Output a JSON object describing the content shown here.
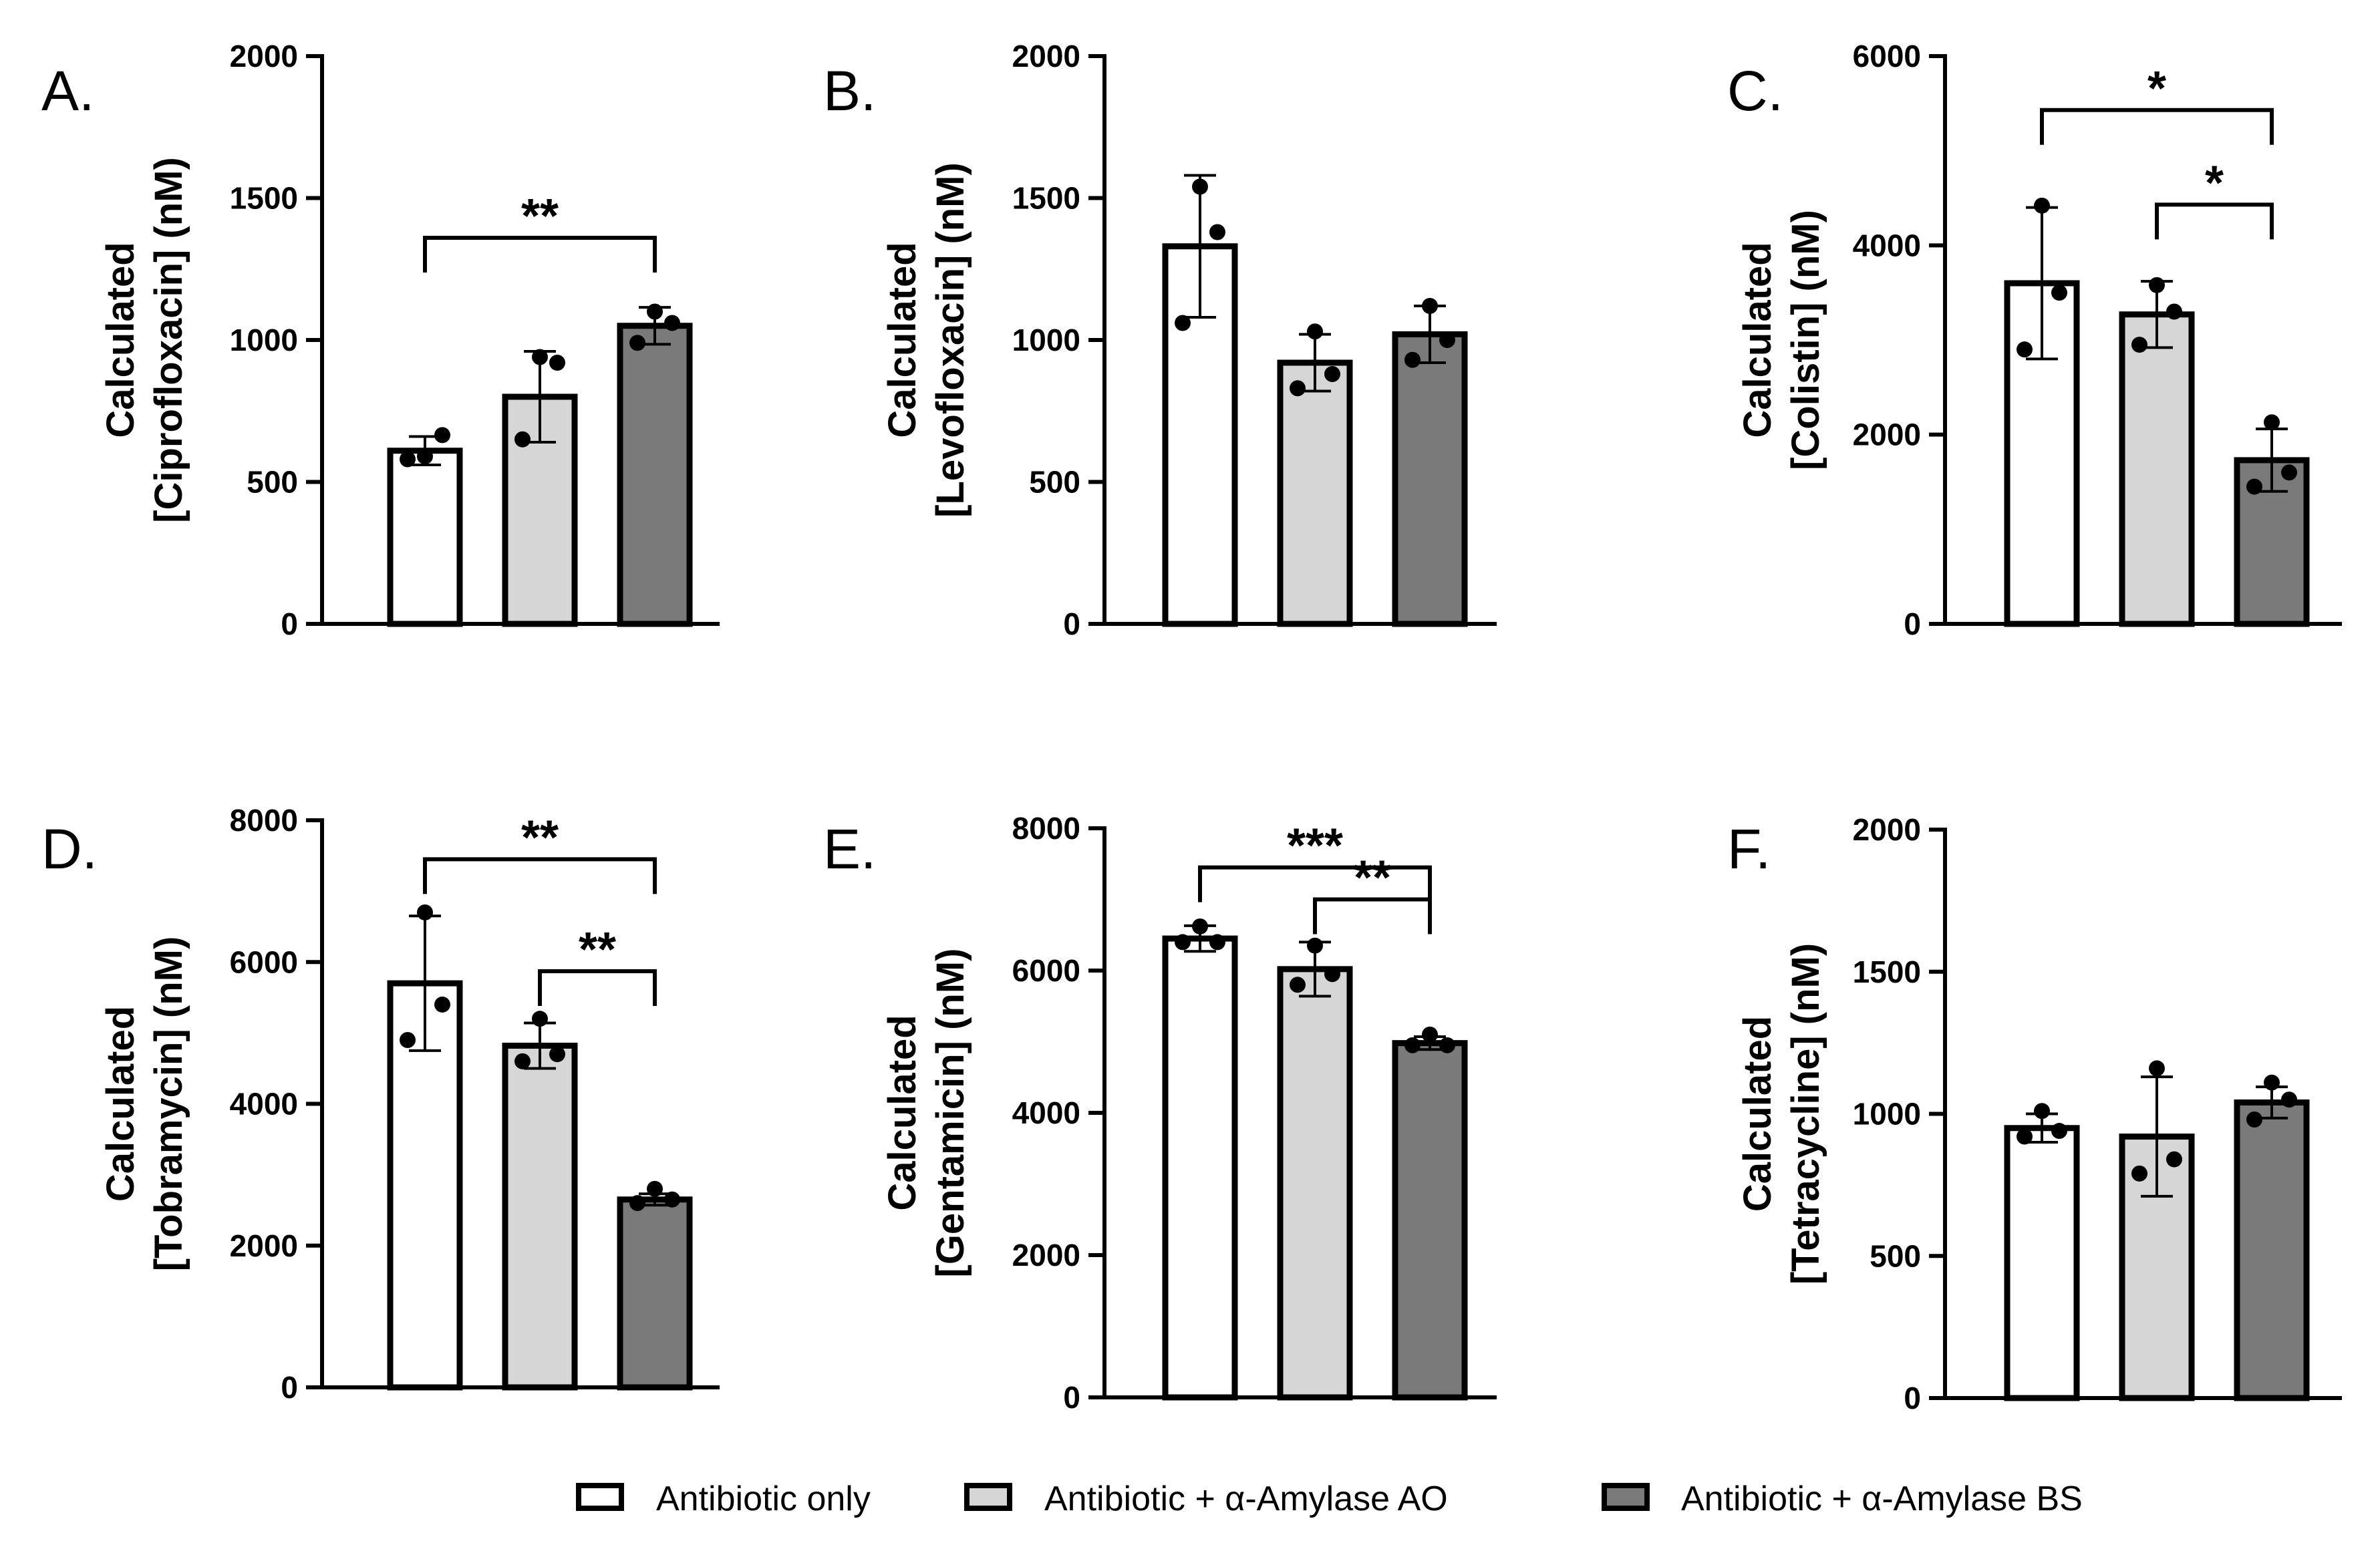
{
  "colors": {
    "antibiotic_only": "#ffffff",
    "amylase_ao": "#d6d6d6",
    "amylase_bs": "#7a7a7a",
    "stroke": "#000000"
  },
  "legend": [
    {
      "label": "Antibiotic only",
      "color_key": "antibiotic_only"
    },
    {
      "label": "Antibiotic + α-Amylase AO",
      "color_key": "amylase_ao"
    },
    {
      "label": "Antibiotic + α-Amylase BS",
      "color_key": "amylase_bs"
    }
  ],
  "chart_data": [
    {
      "type": "bar",
      "panel": "A.",
      "title": "",
      "ylabel_lines": [
        "Calculated",
        "[Ciprofloxacin] (nM)"
      ],
      "ylim": [
        0,
        2000
      ],
      "yticks": [
        0,
        500,
        1000,
        1500,
        2000
      ],
      "categories": [
        "Antibiotic only",
        "Antibiotic + α-Amylase AO",
        "Antibiotic + α-Amylase BS"
      ],
      "values": [
        610,
        800,
        1050
      ],
      "errors": [
        50,
        160,
        65
      ],
      "points": [
        [
          580,
          590,
          665
        ],
        [
          650,
          940,
          920
        ],
        [
          990,
          1100,
          1060
        ]
      ],
      "significance": [
        {
          "from": 0,
          "to": 2,
          "label": "**",
          "y": 1360
        }
      ]
    },
    {
      "type": "bar",
      "panel": "B.",
      "title": "",
      "ylabel_lines": [
        "Calculated",
        "[Levofloxacin] (nM)"
      ],
      "ylim": [
        0,
        2000
      ],
      "yticks": [
        0,
        500,
        1000,
        1500,
        2000
      ],
      "categories": [
        "Antibiotic only",
        "Antibiotic + α-Amylase AO",
        "Antibiotic + α-Amylase BS"
      ],
      "values": [
        1330,
        920,
        1020
      ],
      "errors": [
        250,
        100,
        100
      ],
      "points": [
        [
          1060,
          1540,
          1380
        ],
        [
          830,
          1030,
          880
        ],
        [
          930,
          1120,
          1000
        ]
      ],
      "significance": []
    },
    {
      "type": "bar",
      "panel": "C.",
      "title": "",
      "ylabel_lines": [
        "Calculated",
        "[Colistin] (nM)"
      ],
      "ylim": [
        0,
        6000
      ],
      "yticks": [
        0,
        2000,
        4000,
        6000
      ],
      "categories": [
        "Antibiotic only",
        "Antibiotic + α-Amylase AO",
        "Antibiotic + α-Amylase BS"
      ],
      "values": [
        3600,
        3270,
        1730
      ],
      "errors": [
        800,
        350,
        330
      ],
      "points": [
        [
          2900,
          4420,
          3500
        ],
        [
          2950,
          3580,
          3300
        ],
        [
          1450,
          2130,
          1600
        ]
      ],
      "significance": [
        {
          "from": 0,
          "to": 2,
          "label": "*",
          "y": 5430
        },
        {
          "from": 1,
          "to": 2,
          "label": "*",
          "y": 4430
        }
      ]
    },
    {
      "type": "bar",
      "panel": "D.",
      "title": "",
      "ylabel_lines": [
        "Calculated",
        "[Tobramycin] (nM)"
      ],
      "ylim": [
        0,
        8000
      ],
      "yticks": [
        0,
        2000,
        4000,
        6000,
        8000
      ],
      "categories": [
        "Antibiotic only",
        "Antibiotic + α-Amylase AO",
        "Antibiotic + α-Amylase BS"
      ],
      "values": [
        5700,
        4820,
        2650
      ],
      "errors": [
        950,
        320,
        80
      ],
      "points": [
        [
          4900,
          6700,
          5400
        ],
        [
          4600,
          5200,
          4700
        ],
        [
          2600,
          2800,
          2650
        ]
      ],
      "significance": [
        {
          "from": 0,
          "to": 2,
          "label": "**",
          "y": 7450
        },
        {
          "from": 1,
          "to": 2,
          "label": "**",
          "y": 5870
        }
      ]
    },
    {
      "type": "bar",
      "panel": "E.",
      "title": "",
      "ylabel_lines": [
        "Calculated",
        "[Gentamicin] (nM)"
      ],
      "ylim": [
        0,
        8000
      ],
      "yticks": [
        0,
        2000,
        4000,
        6000,
        8000
      ],
      "categories": [
        "Antibiotic only",
        "Antibiotic + α-Amylase AO",
        "Antibiotic + α-Amylase BS"
      ],
      "values": [
        6450,
        6020,
        4980
      ],
      "errors": [
        180,
        380,
        90
      ],
      "points": [
        [
          6400,
          6620,
          6400
        ],
        [
          5800,
          6350,
          5950
        ],
        [
          4950,
          5100,
          4950
        ]
      ],
      "significance": [
        {
          "from": 0,
          "to": 2,
          "label": "***",
          "y": 7450
        },
        {
          "from": 1,
          "to": 2,
          "label": "**",
          "y": 7000
        }
      ]
    },
    {
      "type": "bar",
      "panel": "F.",
      "title": "",
      "ylabel_lines": [
        "Calculated",
        "[Tetracycline] (nM)"
      ],
      "ylim": [
        0,
        2000
      ],
      "yticks": [
        0,
        500,
        1000,
        1500,
        2000
      ],
      "categories": [
        "Antibiotic only",
        "Antibiotic + α-Amylase AO",
        "Antibiotic + α-Amylase BS"
      ],
      "values": [
        950,
        920,
        1040
      ],
      "errors": [
        50,
        210,
        55
      ],
      "points": [
        [
          920,
          1010,
          940
        ],
        [
          790,
          1160,
          840
        ],
        [
          980,
          1110,
          1050
        ]
      ],
      "significance": []
    }
  ]
}
